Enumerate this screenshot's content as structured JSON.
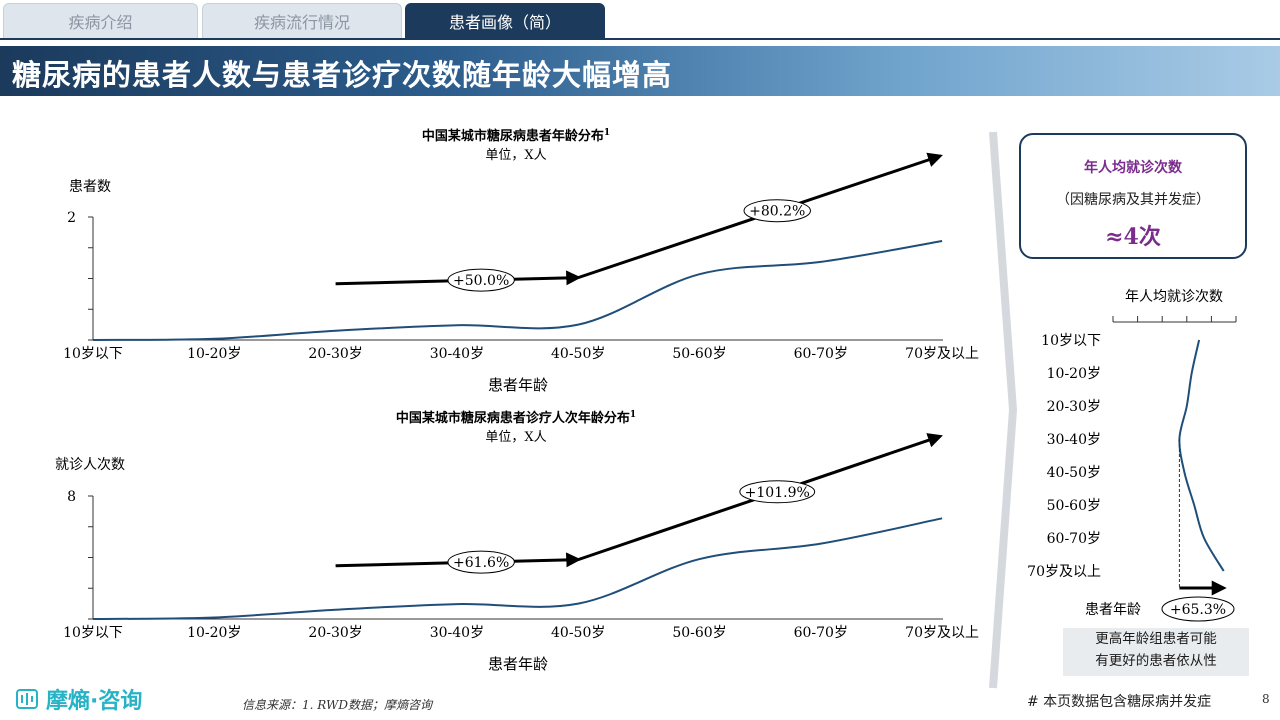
{
  "tabs": [
    {
      "label": "疾病介绍",
      "active": false
    },
    {
      "label": "疾病流行情况",
      "active": false
    },
    {
      "label": "患者画像（简）",
      "active": true
    }
  ],
  "page_title": "糖尿病的患者人数与患者诊疗次数随年龄大幅增高",
  "colors": {
    "navy": "#1b3a5c",
    "curve": "#1f4e79",
    "accent_purple": "#7a2c8c",
    "logo_teal": "#27b3c6"
  },
  "chart_data": [
    {
      "type": "line",
      "title": "中国某城市糖尿病患者年龄分布",
      "title_sup": "1",
      "subtitle": "单位，X人",
      "ylabel": "患者数",
      "xlabel": "患者年龄",
      "categories": [
        "10岁以下",
        "10-20岁",
        "20-30岁",
        "30-40岁",
        "40-50岁",
        "50-60岁",
        "60-70岁",
        "70岁及以上"
      ],
      "values": [
        0.0,
        0.02,
        0.15,
        0.24,
        0.25,
        1.07,
        1.27,
        1.61
      ],
      "ylim": [
        0,
        2
      ],
      "ytick_label": "2",
      "annotations": [
        {
          "label": "+50.0%",
          "from": "20-30岁",
          "to": "40-50岁"
        },
        {
          "label": "+80.2%",
          "from": "40-50岁",
          "to": "70岁及以上"
        }
      ]
    },
    {
      "type": "line",
      "title": "中国某城市糖尿病患者诊疗人次年龄分布",
      "title_sup": "1",
      "subtitle": "单位，X人",
      "ylabel": "就诊人次数",
      "xlabel": "患者年龄",
      "categories": [
        "10岁以下",
        "10-20岁",
        "20-30岁",
        "30-40岁",
        "40-50岁",
        "50-60岁",
        "60-70岁",
        "70岁及以上"
      ],
      "values": [
        0.0,
        0.1,
        0.6,
        0.97,
        1.0,
        3.9,
        4.9,
        6.55
      ],
      "ylim": [
        0,
        8
      ],
      "ytick_label": "8",
      "annotations": [
        {
          "label": "+61.6%",
          "from": "20-30岁",
          "to": "40-50岁"
        },
        {
          "label": "+101.9%",
          "from": "40-50岁",
          "to": "70岁及以上"
        }
      ]
    },
    {
      "type": "line",
      "orientation": "horizontal",
      "title": "年人均就诊次数",
      "categories": [
        "10岁以下",
        "10-20岁",
        "20-30岁",
        "30-40岁",
        "40-50岁",
        "50-60岁",
        "60-70岁",
        "70岁及以上"
      ],
      "values": [
        3.5,
        3.2,
        3.0,
        2.7,
        2.9,
        3.3,
        3.7,
        4.5
      ],
      "xlim": [
        0,
        5
      ],
      "xlabel": "患者年龄",
      "annotations": [
        {
          "label": "+65.3%"
        }
      ]
    }
  ],
  "card": {
    "title": "年人均就诊次数",
    "subtitle": "（因糖尿病及其并发症）",
    "value": "≈4次"
  },
  "note": {
    "line1": "更高年龄组患者可能",
    "line2": "有更好的患者依从性"
  },
  "footer": {
    "logo_text": "摩熵·咨询",
    "source": "信息来源：1. RWD数据；摩熵咨询",
    "note": "# 本页数据包含糖尿病并发症",
    "page_number": "8"
  }
}
